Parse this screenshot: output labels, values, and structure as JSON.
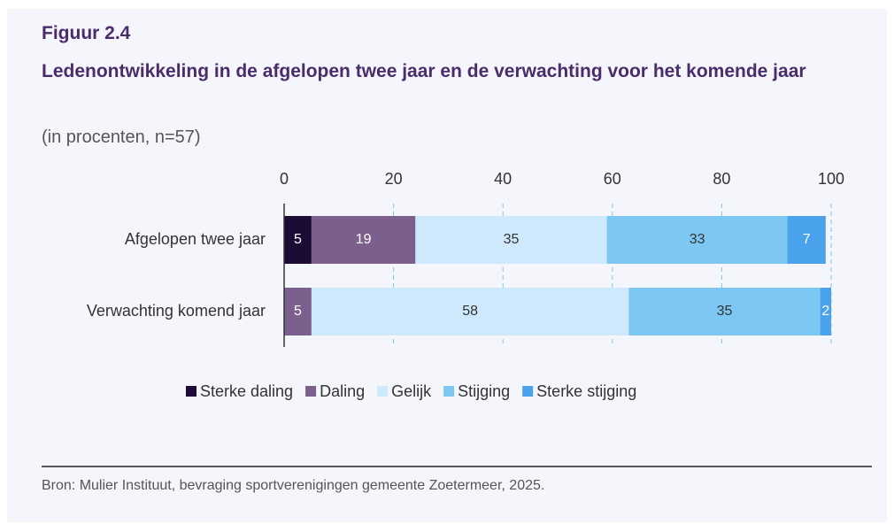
{
  "figure_label": "Figuur 2.4",
  "chart_data": {
    "type": "stacked_barh",
    "title": "Ledenontwikkeling in de afgelopen twee jaar en de verwachting voor het komende jaar",
    "subtitle": "(in procenten, n=57)",
    "categories": [
      "Afgelopen twee jaar",
      "Verwachting komend jaar"
    ],
    "series": [
      {
        "name": "Sterke daling",
        "color": "#1c0b35",
        "values": [
          5,
          null
        ]
      },
      {
        "name": "Daling",
        "color": "#7b5f8c",
        "values": [
          19,
          5
        ]
      },
      {
        "name": "Gelijk",
        "color": "#cde9fb",
        "values": [
          35,
          58
        ]
      },
      {
        "name": "Stijging",
        "color": "#7dc7f3",
        "values": [
          33,
          35
        ]
      },
      {
        "name": "Sterke stijging",
        "color": "#4aa2ec",
        "values": [
          7,
          2
        ]
      }
    ],
    "xlim": [
      0,
      100
    ],
    "xticks": [
      0,
      20,
      40,
      60,
      80,
      100
    ],
    "grid": true,
    "legend": "bottom"
  },
  "source": "Bron: Mulier Instituut, bevraging sportverenigingen gemeente Zoetermeer, 2025."
}
